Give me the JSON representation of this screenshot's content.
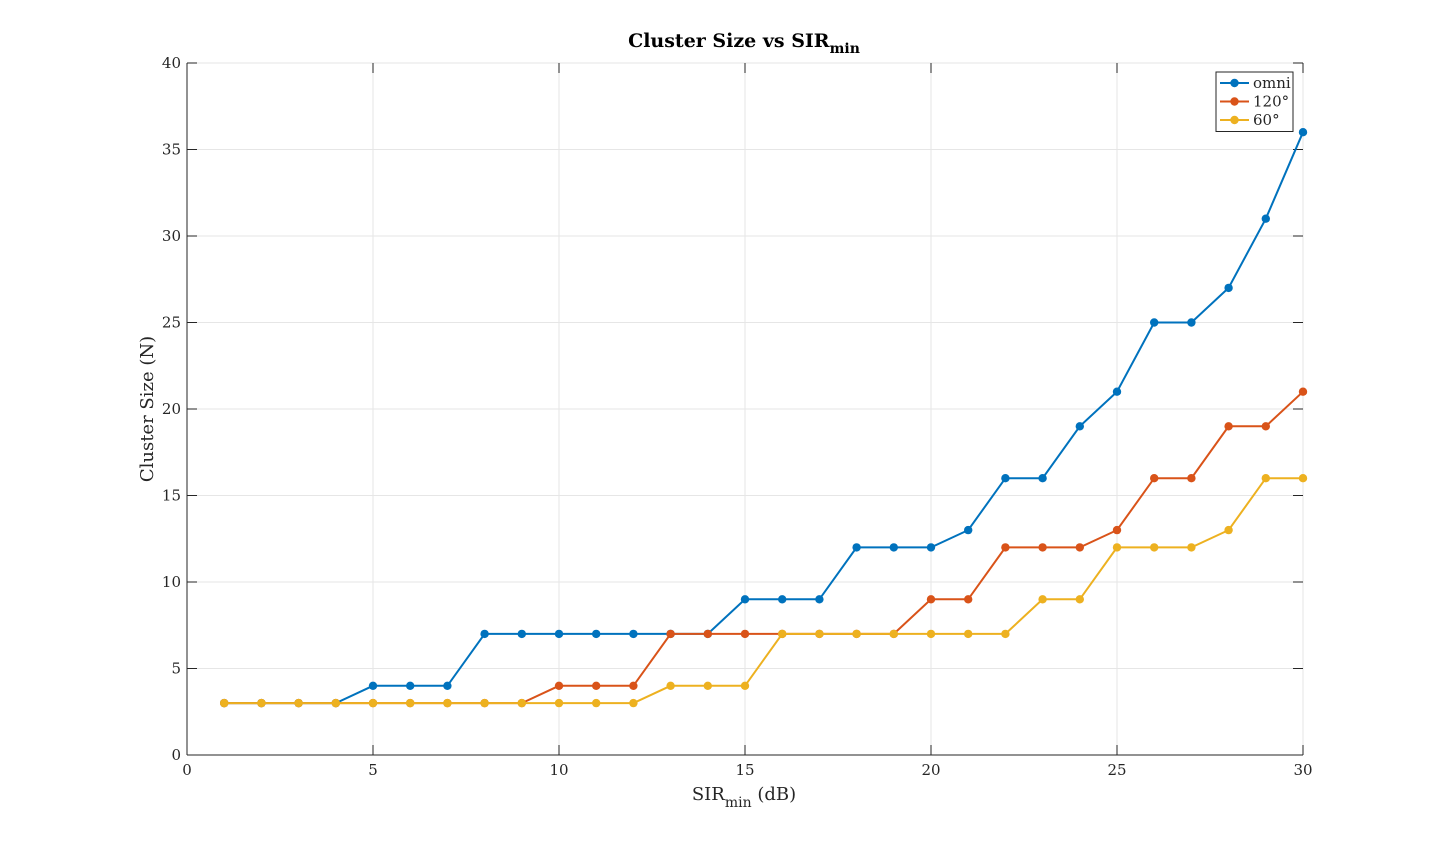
{
  "chart_data": {
    "type": "line",
    "title": "Cluster Size vs SIR",
    "title_subscript": "min",
    "xlabel": "SIR",
    "xlabel_subscript": "min",
    "xlabel_suffix": " (dB)",
    "ylabel": "Cluster Size (N)",
    "xlim": [
      0,
      30
    ],
    "ylim": [
      0,
      40
    ],
    "xticks": [
      0,
      5,
      10,
      15,
      20,
      25,
      30
    ],
    "yticks": [
      0,
      5,
      10,
      15,
      20,
      25,
      30,
      35,
      40
    ],
    "grid": true,
    "legend_position": "top-right",
    "x": [
      1,
      2,
      3,
      4,
      5,
      6,
      7,
      8,
      9,
      10,
      11,
      12,
      13,
      14,
      15,
      16,
      17,
      18,
      19,
      20,
      21,
      22,
      23,
      24,
      25,
      26,
      27,
      28,
      29,
      30
    ],
    "series": [
      {
        "name": "omni",
        "color": "#0072BD",
        "values": [
          3,
          3,
          3,
          3,
          4,
          4,
          4,
          7,
          7,
          7,
          7,
          7,
          7,
          7,
          9,
          9,
          9,
          12,
          12,
          12,
          13,
          16,
          16,
          19,
          21,
          25,
          25,
          27,
          31,
          36
        ]
      },
      {
        "name": "120°",
        "color": "#D95319",
        "values": [
          3,
          3,
          3,
          3,
          3,
          3,
          3,
          3,
          3,
          4,
          4,
          4,
          7,
          7,
          7,
          7,
          7,
          7,
          7,
          9,
          9,
          12,
          12,
          12,
          13,
          16,
          16,
          19,
          19,
          21
        ]
      },
      {
        "name": "60°",
        "color": "#EDB120",
        "values": [
          3,
          3,
          3,
          3,
          3,
          3,
          3,
          3,
          3,
          3,
          3,
          3,
          4,
          4,
          4,
          7,
          7,
          7,
          7,
          7,
          7,
          7,
          9,
          9,
          12,
          12,
          12,
          13,
          16,
          16
        ]
      }
    ]
  }
}
